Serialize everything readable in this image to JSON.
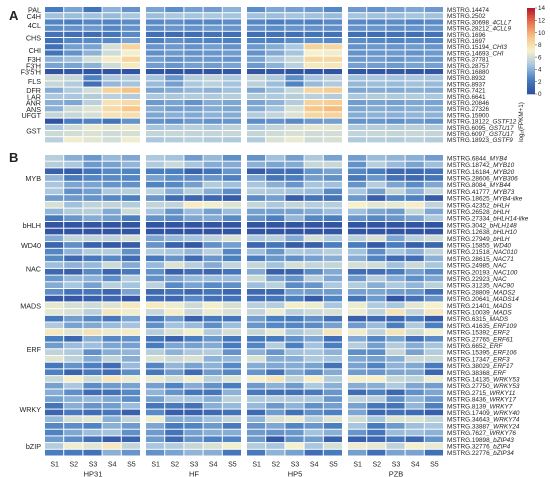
{
  "chart_data": {
    "type": "heatmap",
    "panels": [
      "A",
      "B"
    ],
    "colorbar": {
      "label": "log₂(FPKM+1)",
      "ticks": [
        0,
        2,
        4,
        6,
        8,
        10,
        12,
        14
      ],
      "range": [
        0,
        14
      ],
      "colors": [
        "#2f4f9f",
        "#4a7fc0",
        "#a8c6df",
        "#f6f1cc",
        "#f6c585",
        "#e8744f",
        "#b8192c"
      ]
    },
    "cultivars": [
      "HP31",
      "HF",
      "HP5",
      "PZB"
    ],
    "stages": [
      "S1",
      "S2",
      "S3",
      "S4",
      "S5"
    ],
    "panelA": {
      "rows": [
        "MSTRG.14474",
        "MSTRG.2502",
        "MSTRG.30698_4CLL7",
        "MSTRG.28212_4CLL9",
        "MSTRG.1696",
        "MSTRG.1697",
        "MSTRG.15194_CHI3",
        "MSTRG.14693_CHI",
        "MSTRG.37781",
        "MSTRG.28757",
        "MSTRG.16880",
        "MSTRG.8932",
        "MSTRG.8937",
        "MSTRG.7421",
        "MSTRG.6641",
        "MSTRG.20846",
        "MSTRG.27326",
        "MSTRG.15900",
        "MSTRG.18122_GSTF12",
        "MSTRG.6095_GSTU17",
        "MSTRG.6097_GSTU17",
        "MSTRG.18923_GSTF9"
      ],
      "groups": [
        {
          "label": "PAL",
          "row": 0
        },
        {
          "label": "C4H",
          "row": 1
        },
        {
          "label": "4CL",
          "row": 2.5
        },
        {
          "label": "CHS",
          "row": 4.5
        },
        {
          "label": "CHI",
          "row": 6.5
        },
        {
          "label": "F3H",
          "row": 8
        },
        {
          "label": "F3'H",
          "row": 9
        },
        {
          "label": "F3'5'H",
          "row": 10
        },
        {
          "label": "FLS",
          "row": 11.5
        },
        {
          "label": "DFR",
          "row": 13
        },
        {
          "label": "LAR",
          "row": 14
        },
        {
          "label": "ANR",
          "row": 15
        },
        {
          "label": "ANS",
          "row": 16
        },
        {
          "label": "UFGT",
          "row": 17
        },
        {
          "label": "GST",
          "row": 19.5
        }
      ]
    },
    "panelB": {
      "rows": [
        "MSTRG.6844_MYB4",
        "MSTRG.18742_MYB10",
        "MSTRG.16184_MYB20",
        "MSTRG.28606_MYB306",
        "MSTRG.8084_MYB44",
        "MSTRG.41777_MYB73",
        "MSTRG.18625_MYB4-like",
        "MSTRG.42352_bHLH",
        "MSTRG.26528_bHLH",
        "MSTRG.27334_bHLH14-like",
        "MSTRG.3042_bHLH148",
        "MSTRG.12638_bHLH10",
        "MSTRG.27949_bHLH",
        "MSTRG.15855_WD40",
        "MSTRG.21518_NAC010",
        "MSTRG.28615_NAC71",
        "MSTRG.24985_NAC",
        "MSTRG.20193_NAC100",
        "MSTRG.22923_NAC",
        "MSTRG.31235_NAC90",
        "MSTRG.28809_MADS2",
        "MSTRG.20641_MADS14",
        "MSTRG.21401_MADS",
        "MSTRG.10039_MADS",
        "MSTRG.6315_MADS",
        "MSTRG.41635_ERF109",
        "MSTRG.15392_ERF2",
        "MSTRG.27765_ERF61",
        "MSTRG.6652_ERF",
        "MSTRG.15395_ERF106",
        "MSTRG.17347_ERF3",
        "MSTRG.38029_ERF17",
        "MSTRG.38368_ERF",
        "MSTRG.14135_WRKY53",
        "MSTRG.27750_WRKY53",
        "MSTRG.2715_WRKY11",
        "MSTRG.8436_WRKY17",
        "MSTRG.8139_WRKY7",
        "MSTRG.17409_WRKY40",
        "MSTRG.34643_WRKY74",
        "MSTRG.33887_WRKY24",
        "MSTRG.7627_WRKY76",
        "MSTRG.19898_bZIP43",
        "MSTRG.32776_bZIP4",
        "MSTRG.22776_bZIP34"
      ],
      "groups": [
        {
          "label": "MYB",
          "row": 3
        },
        {
          "label": "bHLH",
          "row": 10
        },
        {
          "label": "WD40",
          "row": 13
        },
        {
          "label": "NAC",
          "row": 16.5
        },
        {
          "label": "MADS",
          "row": 22
        },
        {
          "label": "ERF",
          "row": 28.5
        },
        {
          "label": "WRKY",
          "row": 37.5
        },
        {
          "label": "bZIP",
          "row": 43
        }
      ]
    },
    "seriesA": [
      [
        [
          2.2,
          3.5,
          1.8,
          4.0,
          3.0
        ],
        [
          4.5,
          4.4,
          4.5,
          4.3,
          4.7
        ],
        [
          2.5,
          2.3,
          2.6,
          2.5,
          2.8
        ],
        [
          2.8,
          3.0,
          3.2,
          2.6,
          3.0
        ],
        [
          1.8,
          1.6,
          1.5,
          1.9,
          2.7
        ],
        [
          1.6,
          2.6,
          2.7,
          2.7,
          3.5
        ],
        [
          1.6,
          3.4,
          3.5,
          6.0,
          8.5
        ],
        [
          1.8,
          3.0,
          4.0,
          5.8,
          6.9
        ],
        [
          4.0,
          4.5,
          6.0,
          7.2,
          8.5
        ],
        [
          3.5,
          3.5,
          4.0,
          5.8,
          7.4
        ],
        [
          0.2,
          0.4,
          0.3,
          0.3,
          0.3
        ],
        [
          5.8,
          5.6,
          2.4,
          4.8,
          5.0
        ],
        [
          5.6,
          5.0,
          1.6,
          4.2,
          4.6
        ],
        [
          3.8,
          5.0,
          5.9,
          8.6,
          9.4
        ],
        [
          4.8,
          4.7,
          5.0,
          5.2,
          5.0
        ],
        [
          3.9,
          3.6,
          5.2,
          7.8,
          8.2
        ],
        [
          4.0,
          5.7,
          6.3,
          8.2,
          9.2
        ],
        [
          5.5,
          5.6,
          6.0,
          7.8,
          8.0
        ],
        [
          0.2,
          2.3,
          2.5,
          1.8,
          3.0
        ],
        [
          4.8,
          5.8,
          6.6,
          6.4,
          6.6
        ],
        [
          5.7,
          5.9,
          6.2,
          5.8,
          6.0
        ],
        [
          5.2,
          6.8,
          6.4,
          5.9,
          6.8
        ]
      ],
      [
        [
          3.5,
          2.8,
          3.4,
          3.3,
          4.0
        ],
        [
          4.4,
          4.8,
          4.6,
          4.8,
          4.6
        ],
        [
          2.7,
          2.9,
          2.6,
          2.6,
          2.8
        ],
        [
          2.9,
          3.1,
          3.0,
          3.2,
          3.1
        ],
        [
          1.6,
          1.4,
          1.5,
          1.7,
          1.6
        ],
        [
          2.4,
          2.9,
          2.6,
          2.5,
          2.4
        ],
        [
          3.1,
          3.2,
          3.0,
          3.4,
          3.0
        ],
        [
          2.9,
          3.2,
          3.0,
          3.1,
          3.3
        ],
        [
          3.4,
          3.0,
          3.2,
          3.2,
          3.1
        ],
        [
          3.3,
          3.1,
          3.4,
          3.3,
          3.5
        ],
        [
          0.3,
          0.2,
          0.3,
          0.3,
          0.4
        ],
        [
          4.6,
          3.1,
          5.1,
          5.5,
          4.8
        ],
        [
          4.3,
          3.4,
          4.8,
          5.2,
          4.6
        ],
        [
          3.5,
          3.8,
          4.2,
          4.0,
          4.5
        ],
        [
          4.8,
          4.8,
          5.0,
          4.9,
          5.1
        ],
        [
          3.2,
          3.5,
          3.0,
          3.8,
          3.6
        ],
        [
          3.8,
          3.4,
          3.5,
          3.8,
          3.6
        ],
        [
          3.6,
          3.9,
          3.7,
          4.0,
          3.8
        ],
        [
          3.0,
          2.8,
          3.2,
          3.0,
          3.1
        ],
        [
          4.6,
          4.8,
          5.2,
          4.8,
          5.3
        ],
        [
          5.5,
          5.6,
          5.4,
          5.5,
          5.6
        ],
        [
          4.8,
          5.0,
          5.2,
          5.0,
          4.9
        ]
      ],
      [
        [
          2.8,
          3.6,
          3.4,
          3.2,
          2.6
        ],
        [
          4.5,
          4.4,
          4.6,
          4.5,
          4.3
        ],
        [
          2.6,
          2.3,
          2.5,
          2.4,
          2.7
        ],
        [
          3.0,
          2.8,
          3.1,
          3.0,
          2.9
        ],
        [
          1.6,
          1.7,
          1.6,
          1.8,
          1.7
        ],
        [
          2.5,
          2.4,
          2.8,
          2.9,
          2.7
        ],
        [
          3.2,
          3.8,
          4.8,
          8.6,
          8.4
        ],
        [
          3.0,
          3.7,
          4.6,
          7.0,
          6.8
        ],
        [
          3.5,
          4.8,
          5.6,
          8.4,
          8.3
        ],
        [
          3.2,
          4.0,
          5.2,
          7.4,
          7.6
        ],
        [
          0.3,
          0.4,
          0.3,
          0.3,
          0.3
        ],
        [
          5.5,
          4.8,
          2.8,
          4.6,
          5.2
        ],
        [
          5.2,
          4.4,
          2.5,
          4.3,
          4.9
        ],
        [
          3.6,
          4.5,
          5.6,
          8.5,
          8.9
        ],
        [
          5.0,
          4.9,
          5.1,
          5.2,
          5.0
        ],
        [
          3.5,
          4.0,
          5.0,
          8.6,
          8.8
        ],
        [
          3.8,
          4.6,
          6.0,
          9.2,
          9.6
        ],
        [
          5.0,
          5.4,
          6.2,
          8.4,
          8.6
        ],
        [
          2.8,
          3.0,
          2.7,
          3.2,
          3.4
        ],
        [
          4.8,
          5.4,
          6.0,
          6.5,
          6.4
        ],
        [
          5.5,
          5.8,
          6.1,
          5.8,
          5.9
        ],
        [
          5.0,
          6.2,
          6.6,
          5.8,
          6.0
        ]
      ],
      [
        [
          3.2,
          3.0,
          3.4,
          3.6,
          3.2
        ],
        [
          4.6,
          4.5,
          4.4,
          4.6,
          4.5
        ],
        [
          2.7,
          2.6,
          2.8,
          2.5,
          2.7
        ],
        [
          3.0,
          3.1,
          2.9,
          3.0,
          3.1
        ],
        [
          1.6,
          1.5,
          1.7,
          1.6,
          1.7
        ],
        [
          2.8,
          2.6,
          2.5,
          2.7,
          2.6
        ],
        [
          3.0,
          3.2,
          3.1,
          3.3,
          3.1
        ],
        [
          3.0,
          3.1,
          3.2,
          3.0,
          3.2
        ],
        [
          3.2,
          3.3,
          3.1,
          3.4,
          3.2
        ],
        [
          3.4,
          3.3,
          3.2,
          3.5,
          3.4
        ],
        [
          0.3,
          0.3,
          0.4,
          0.3,
          0.3
        ],
        [
          4.5,
          4.7,
          4.6,
          4.8,
          4.6
        ],
        [
          4.2,
          4.4,
          4.3,
          4.5,
          4.3
        ],
        [
          3.6,
          3.8,
          3.7,
          3.9,
          3.8
        ],
        [
          4.8,
          5.0,
          4.9,
          5.0,
          4.8
        ],
        [
          3.3,
          3.5,
          3.4,
          3.6,
          3.5
        ],
        [
          3.6,
          3.8,
          3.7,
          3.9,
          3.8
        ],
        [
          3.8,
          4.0,
          3.9,
          4.1,
          4.0
        ],
        [
          3.0,
          3.1,
          2.9,
          3.2,
          3.0
        ],
        [
          4.9,
          5.1,
          5.0,
          5.2,
          5.0
        ],
        [
          5.4,
          5.6,
          5.5,
          5.6,
          5.5
        ],
        [
          4.9,
          5.1,
          5.0,
          5.2,
          5.0
        ]
      ]
    ]
  }
}
